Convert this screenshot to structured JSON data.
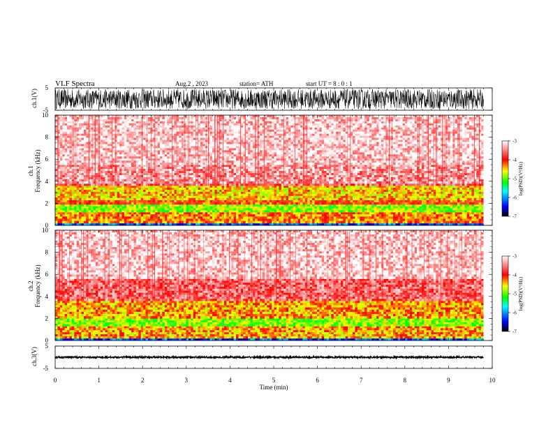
{
  "header": {
    "title": "VLF  Spectra",
    "date": "Aug.2  , 2023",
    "station": "station= ATH",
    "start": "start  UT  =   8  : 0   : 1"
  },
  "chart_data": [
    {
      "type": "line",
      "name": "ch1-waveform",
      "ylabel": "ch.1(V)",
      "ylim": [
        -5,
        5
      ],
      "y_ticks": [
        "5",
        "-5"
      ],
      "xlim": [
        0,
        10
      ],
      "description_values": {
        "amplitude_range": [
          -4.5,
          4.5
        ],
        "end_time_min": 9.8
      }
    },
    {
      "type": "heatmap",
      "name": "ch1-spectrogram",
      "ylabel": "ch.1\nFrequency  (kHz)",
      "ylabel_line1": "ch.1",
      "ylabel_line2": "Frequency  (kHz)",
      "ylim": [
        0,
        10
      ],
      "y_ticks": [
        "0",
        "2",
        "4",
        "6",
        "8",
        "10"
      ],
      "xlim": [
        0,
        10
      ],
      "data_end_min": 9.8,
      "bands_khz_logpsd": [
        {
          "f0": 0,
          "f1": 0.2,
          "level": -6.2
        },
        {
          "f0": 0.2,
          "f1": 1.2,
          "level": -4.3
        },
        {
          "f0": 1.2,
          "f1": 1.9,
          "level": -4.9
        },
        {
          "f0": 1.9,
          "f1": 2.3,
          "level": -4.1
        },
        {
          "f0": 2.3,
          "f1": 3.6,
          "level": -4.5
        },
        {
          "f0": 3.6,
          "f1": 3.8,
          "level": -3.6
        },
        {
          "f0": 3.8,
          "f1": 5.5,
          "level": -3.4
        },
        {
          "f0": 5.5,
          "f1": 10,
          "level": -3.2
        }
      ]
    },
    {
      "type": "heatmap",
      "name": "ch2-spectrogram",
      "ylabel_line1": "ch.2",
      "ylabel_line2": "Frequency  (kHz)",
      "ylim": [
        0,
        10
      ],
      "y_ticks": [
        "0",
        "2",
        "4",
        "6",
        "8",
        "10"
      ],
      "xlim": [
        0,
        10
      ],
      "data_end_min": 9.8,
      "bands_khz_logpsd": [
        {
          "f0": 0,
          "f1": 0.2,
          "level": -6.2
        },
        {
          "f0": 0.2,
          "f1": 1.3,
          "level": -4.4
        },
        {
          "f0": 1.3,
          "f1": 2.0,
          "level": -4.9
        },
        {
          "f0": 2.0,
          "f1": 3.6,
          "level": -4.4
        },
        {
          "f0": 3.6,
          "f1": 5.6,
          "level": -3.6
        },
        {
          "f0": 5.6,
          "f1": 10,
          "level": -3.2
        }
      ]
    },
    {
      "type": "line",
      "name": "ch3-waveform",
      "ylabel": "ch.3(V)",
      "ylim": [
        -5,
        5
      ],
      "y_ticks": [
        "5",
        "-5"
      ],
      "xlim": [
        0,
        10
      ],
      "level_v": 0,
      "end_time_min": 9.8
    }
  ],
  "x_axis": {
    "label": "Time  (min)",
    "ticks": [
      "0",
      "1",
      "2",
      "3",
      "4",
      "5",
      "6",
      "7",
      "8",
      "9",
      "10"
    ]
  },
  "colorbar": {
    "label": "log(PSD)(V²/Hz)",
    "ticks": [
      "-3",
      "-4",
      "-5",
      "-6",
      "-7"
    ],
    "range": [
      -7,
      -3
    ],
    "colors": [
      "#000000",
      "#0000ff",
      "#00ffff",
      "#00ff00",
      "#ffff00",
      "#ff0000",
      "#ffffff"
    ]
  }
}
